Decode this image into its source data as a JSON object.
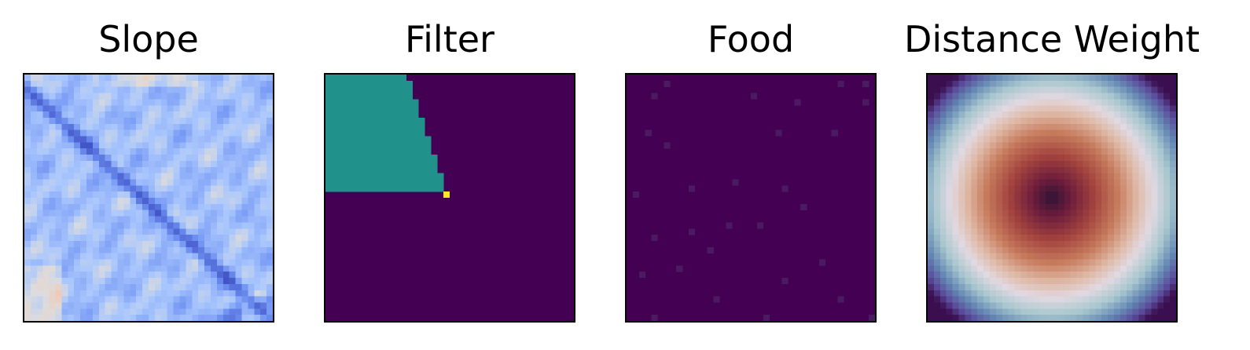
{
  "chart_data": [
    {
      "type": "heatmap",
      "title": "Slope",
      "colormap": "coolwarm",
      "grid": false,
      "axis_ticks": false,
      "resolution": [
        40,
        40
      ],
      "colors": {
        "low": "#3b4cc0",
        "mid": "#dddcdc",
        "high": "#b40426"
      }
    },
    {
      "type": "heatmap",
      "title": "Filter",
      "colormap": "viridis",
      "grid": false,
      "axis_ticks": false,
      "resolution": [
        40,
        40
      ],
      "colors": {
        "background": "#440154",
        "cone": "#21918c",
        "origin": "#fde725"
      }
    },
    {
      "type": "heatmap",
      "title": "Food",
      "colormap": "viridis",
      "grid": false,
      "axis_ticks": false,
      "resolution": [
        40,
        40
      ],
      "colors": {
        "background": "#440154",
        "specks": "#4a1a63"
      }
    },
    {
      "type": "heatmap",
      "title": "Distance Weight",
      "colormap": "twilight_shifted",
      "grid": false,
      "axis_ticks": false,
      "resolution": [
        40,
        40
      ],
      "colors": {
        "center": "#2f1436",
        "ring": "#e2d9e2",
        "edge": "#3b0f4f"
      }
    }
  ]
}
